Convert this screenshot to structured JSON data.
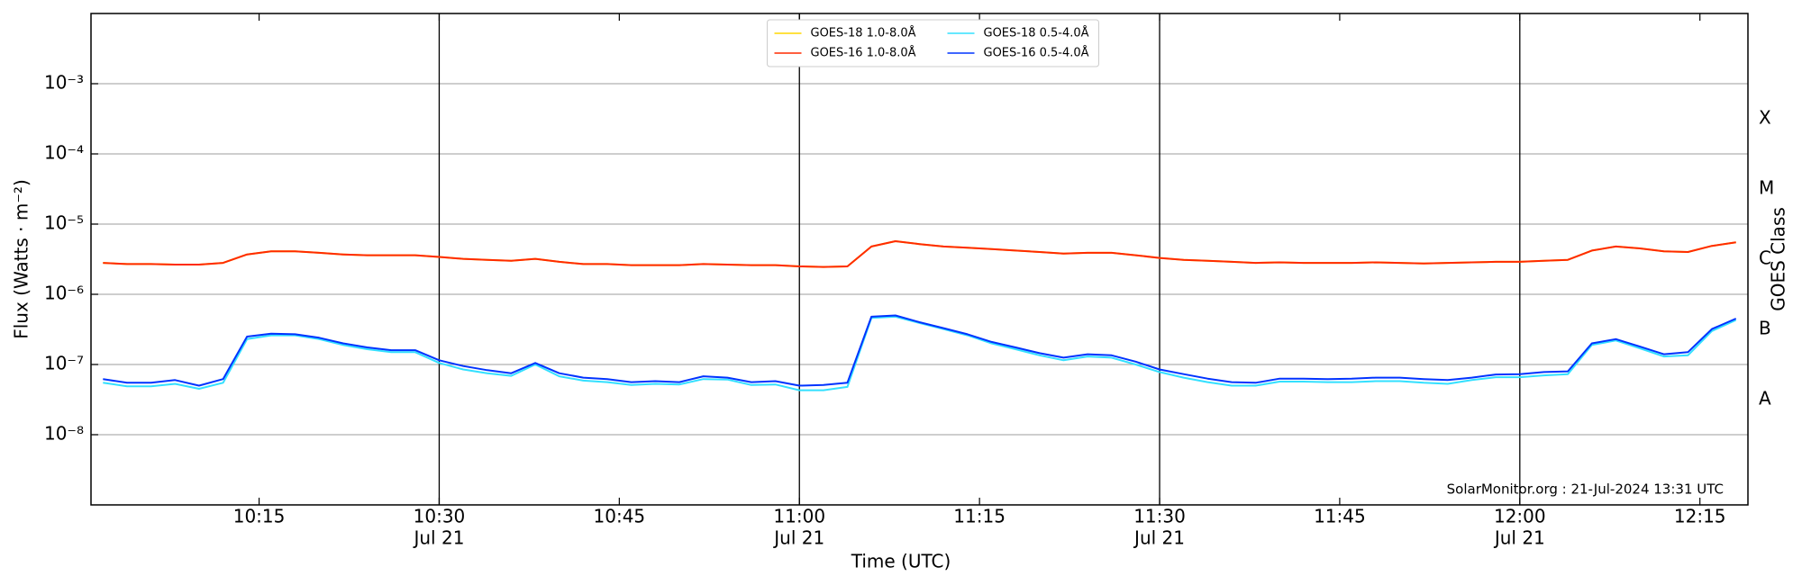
{
  "chart_data": {
    "type": "line",
    "xlabel": "Time (UTC)",
    "ylabel": "Flux (Watts · m⁻²)",
    "y2label": "GOES Class",
    "annotation": "SolarMonitor.org : 21-Jul-2024 13:31 UTC",
    "log_y": true,
    "grid": true,
    "legend": "upper center",
    "xlim": [
      "10:01",
      "12:19"
    ],
    "xticks": [
      {
        "value": "10:15",
        "label": "10:15"
      },
      {
        "value": "10:30",
        "label": "10:30",
        "date": "Jul 21"
      },
      {
        "value": "10:45",
        "label": "10:45"
      },
      {
        "value": "11:00",
        "label": "11:00",
        "date": "Jul 21"
      },
      {
        "value": "11:15",
        "label": "11:15"
      },
      {
        "value": "11:30",
        "label": "11:30",
        "date": "Jul 21"
      },
      {
        "value": "11:45",
        "label": "11:45"
      },
      {
        "value": "12:00",
        "label": "12:00",
        "date": "Jul 21"
      },
      {
        "value": "12:15",
        "label": "12:15"
      }
    ],
    "ylim": [
      1e-09,
      0.01
    ],
    "yticks": [
      {
        "value": 1e-08,
        "label": "10⁻⁸"
      },
      {
        "value": 1e-07,
        "label": "10⁻⁷"
      },
      {
        "value": 1e-06,
        "label": "10⁻⁶"
      },
      {
        "value": 1e-05,
        "label": "10⁻⁵"
      },
      {
        "value": 0.0001,
        "label": "10⁻⁴"
      },
      {
        "value": 0.001,
        "label": "10⁻³"
      }
    ],
    "y2lim": [
      1e-09,
      0.01
    ],
    "y2ticks": [
      {
        "value": 3.162e-08,
        "label": "A"
      },
      {
        "value": 3.162e-07,
        "label": "B"
      },
      {
        "value": 3.162e-06,
        "label": "C"
      },
      {
        "value": 3.162e-05,
        "label": "M"
      },
      {
        "value": 0.0003162,
        "label": "X"
      }
    ],
    "x": [
      "10:02",
      "10:04",
      "10:06",
      "10:08",
      "10:10",
      "10:12",
      "10:14",
      "10:16",
      "10:18",
      "10:20",
      "10:22",
      "10:24",
      "10:26",
      "10:28",
      "10:30",
      "10:32",
      "10:34",
      "10:36",
      "10:38",
      "10:40",
      "10:42",
      "10:44",
      "10:46",
      "10:48",
      "10:50",
      "10:52",
      "10:54",
      "10:56",
      "10:58",
      "11:00",
      "11:02",
      "11:04",
      "11:06",
      "11:08",
      "11:10",
      "11:12",
      "11:14",
      "11:16",
      "11:18",
      "11:20",
      "11:22",
      "11:24",
      "11:26",
      "11:28",
      "11:30",
      "11:32",
      "11:34",
      "11:36",
      "11:38",
      "11:40",
      "11:42",
      "11:44",
      "11:46",
      "11:48",
      "11:50",
      "11:52",
      "11:54",
      "11:56",
      "11:58",
      "12:00",
      "12:02",
      "12:04",
      "12:06",
      "12:08",
      "12:10",
      "12:12",
      "12:14",
      "12:16",
      "12:18"
    ],
    "series": [
      {
        "name": "GOES-18 1.0-8.0Å",
        "color": "#ffd700",
        "values": [
          2.8e-06,
          2.7e-06,
          2.7e-06,
          2.65e-06,
          2.65e-06,
          2.8e-06,
          3.7e-06,
          4.1e-06,
          4.1e-06,
          3.9e-06,
          3.7e-06,
          3.6e-06,
          3.6e-06,
          3.6e-06,
          3.4e-06,
          3.2e-06,
          3.1e-06,
          3e-06,
          3.2e-06,
          2.9e-06,
          2.7e-06,
          2.7e-06,
          2.6e-06,
          2.6e-06,
          2.6e-06,
          2.7e-06,
          2.65e-06,
          2.6e-06,
          2.6e-06,
          2.5e-06,
          2.45e-06,
          2.5e-06,
          4.8e-06,
          5.7e-06,
          5.2e-06,
          4.8e-06,
          4.6e-06,
          4.4e-06,
          4.2e-06,
          4e-06,
          3.8e-06,
          3.9e-06,
          3.9e-06,
          3.6e-06,
          3.3e-06,
          3.1e-06,
          3e-06,
          2.9e-06,
          2.8e-06,
          2.85e-06,
          2.8e-06,
          2.8e-06,
          2.8e-06,
          2.85e-06,
          2.8e-06,
          2.75e-06,
          2.8e-06,
          2.85e-06,
          2.9e-06,
          2.9e-06,
          3e-06,
          3.1e-06,
          4.2e-06,
          4.8e-06,
          4.5e-06,
          4.1e-06,
          4e-06,
          4.9e-06,
          5.5e-06
        ]
      },
      {
        "name": "GOES-16 1.0-8.0Å",
        "color": "#ff2a00",
        "values": [
          2.8e-06,
          2.7e-06,
          2.7e-06,
          2.65e-06,
          2.65e-06,
          2.8e-06,
          3.7e-06,
          4.1e-06,
          4.1e-06,
          3.9e-06,
          3.7e-06,
          3.6e-06,
          3.6e-06,
          3.6e-06,
          3.4e-06,
          3.2e-06,
          3.1e-06,
          3e-06,
          3.2e-06,
          2.9e-06,
          2.7e-06,
          2.7e-06,
          2.6e-06,
          2.6e-06,
          2.6e-06,
          2.7e-06,
          2.65e-06,
          2.6e-06,
          2.6e-06,
          2.5e-06,
          2.45e-06,
          2.5e-06,
          4.8e-06,
          5.7e-06,
          5.2e-06,
          4.8e-06,
          4.6e-06,
          4.4e-06,
          4.2e-06,
          4e-06,
          3.8e-06,
          3.9e-06,
          3.9e-06,
          3.6e-06,
          3.3e-06,
          3.1e-06,
          3e-06,
          2.9e-06,
          2.8e-06,
          2.85e-06,
          2.8e-06,
          2.8e-06,
          2.8e-06,
          2.85e-06,
          2.8e-06,
          2.75e-06,
          2.8e-06,
          2.85e-06,
          2.9e-06,
          2.9e-06,
          3e-06,
          3.1e-06,
          4.2e-06,
          4.8e-06,
          4.5e-06,
          4.1e-06,
          4e-06,
          4.9e-06,
          5.5e-06
        ]
      },
      {
        "name": "GOES-18 0.5-4.0Å",
        "color": "#33e0ff",
        "values": [
          5.5e-08,
          4.9e-08,
          4.9e-08,
          5.3e-08,
          4.5e-08,
          5.5e-08,
          2.3e-07,
          2.6e-07,
          2.6e-07,
          2.3e-07,
          1.9e-07,
          1.65e-07,
          1.5e-07,
          1.5e-07,
          1.05e-07,
          8.5e-08,
          7.5e-08,
          6.9e-08,
          1e-07,
          6.8e-08,
          5.9e-08,
          5.6e-08,
          5.1e-08,
          5.3e-08,
          5.2e-08,
          6.2e-08,
          6.1e-08,
          5.1e-08,
          5.2e-08,
          4.3e-08,
          4.3e-08,
          4.8e-08,
          4.6e-07,
          4.8e-07,
          3.9e-07,
          3.2e-07,
          2.6e-07,
          2e-07,
          1.65e-07,
          1.35e-07,
          1.15e-07,
          1.3e-07,
          1.25e-07,
          1e-07,
          7.8e-08,
          6.5e-08,
          5.6e-08,
          5e-08,
          5e-08,
          5.7e-08,
          5.7e-08,
          5.6e-08,
          5.6e-08,
          5.8e-08,
          5.8e-08,
          5.5e-08,
          5.3e-08,
          6e-08,
          6.6e-08,
          6.6e-08,
          7e-08,
          7.3e-08,
          1.9e-07,
          2.2e-07,
          1.7e-07,
          1.3e-07,
          1.35e-07,
          3e-07,
          4.3e-07
        ]
      },
      {
        "name": "GOES-16 0.5-4.0Å",
        "color": "#0033ff",
        "values": [
          6.2e-08,
          5.5e-08,
          5.5e-08,
          6e-08,
          5e-08,
          6.2e-08,
          2.5e-07,
          2.75e-07,
          2.7e-07,
          2.4e-07,
          2e-07,
          1.75e-07,
          1.6e-07,
          1.6e-07,
          1.15e-07,
          9.5e-08,
          8.3e-08,
          7.5e-08,
          1.05e-07,
          7.5e-08,
          6.5e-08,
          6.2e-08,
          5.6e-08,
          5.8e-08,
          5.6e-08,
          6.8e-08,
          6.5e-08,
          5.6e-08,
          5.8e-08,
          5e-08,
          5.1e-08,
          5.5e-08,
          4.8e-07,
          5e-07,
          4e-07,
          3.3e-07,
          2.7e-07,
          2.1e-07,
          1.75e-07,
          1.45e-07,
          1.25e-07,
          1.4e-07,
          1.35e-07,
          1.1e-07,
          8.5e-08,
          7.3e-08,
          6.3e-08,
          5.6e-08,
          5.5e-08,
          6.3e-08,
          6.3e-08,
          6.2e-08,
          6.3e-08,
          6.5e-08,
          6.5e-08,
          6.2e-08,
          6e-08,
          6.5e-08,
          7.2e-08,
          7.3e-08,
          7.8e-08,
          8e-08,
          2e-07,
          2.3e-07,
          1.8e-07,
          1.4e-07,
          1.5e-07,
          3.2e-07,
          4.5e-07
        ]
      }
    ]
  }
}
